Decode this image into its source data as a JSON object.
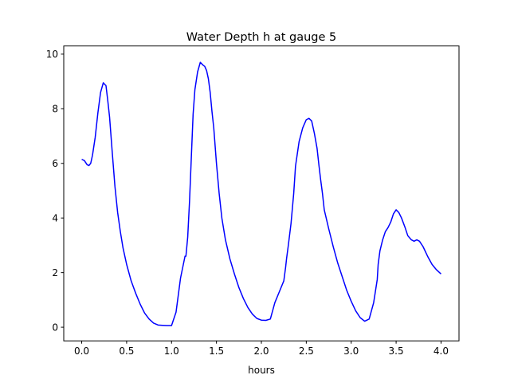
{
  "chart_data": {
    "type": "line",
    "title": "Water Depth h at gauge 5",
    "xlabel": "hours",
    "ylabel": "",
    "xlim": [
      -0.2,
      4.2
    ],
    "ylim": [
      -0.5,
      10.3
    ],
    "xticks": [
      0.0,
      0.5,
      1.0,
      1.5,
      2.0,
      2.5,
      3.0,
      3.5,
      4.0
    ],
    "xtick_labels": [
      "0.0",
      "0.5",
      "1.0",
      "1.5",
      "2.0",
      "2.5",
      "3.0",
      "3.5",
      "4.0"
    ],
    "yticks": [
      0,
      2,
      4,
      6,
      8,
      10
    ],
    "ytick_labels": [
      "0",
      "2",
      "4",
      "6",
      "8",
      "10"
    ],
    "grid": false,
    "series": [
      {
        "color": "#0000ff",
        "x": [
          0.0,
          0.03,
          0.06,
          0.08,
          0.1,
          0.12,
          0.15,
          0.18,
          0.21,
          0.24,
          0.27,
          0.29,
          0.31,
          0.34,
          0.37,
          0.4,
          0.43,
          0.46,
          0.5,
          0.55,
          0.6,
          0.65,
          0.7,
          0.75,
          0.8,
          0.85,
          0.9,
          0.95,
          1.0,
          1.05,
          1.1,
          1.15,
          1.16,
          1.18,
          1.2,
          1.22,
          1.24,
          1.26,
          1.29,
          1.32,
          1.35,
          1.37,
          1.39,
          1.41,
          1.43,
          1.45,
          1.47,
          1.5,
          1.53,
          1.56,
          1.6,
          1.65,
          1.7,
          1.75,
          1.8,
          1.85,
          1.9,
          1.95,
          2.0,
          2.05,
          2.1,
          2.15,
          2.2,
          2.25,
          2.27,
          2.28,
          2.3,
          2.33,
          2.36,
          2.38,
          2.42,
          2.46,
          2.5,
          2.53,
          2.56,
          2.59,
          2.62,
          2.64,
          2.66,
          2.68,
          2.7,
          2.75,
          2.8,
          2.85,
          2.9,
          2.95,
          3.0,
          3.05,
          3.1,
          3.15,
          3.2,
          3.25,
          3.29,
          3.3,
          3.32,
          3.35,
          3.38,
          3.41,
          3.44,
          3.47,
          3.5,
          3.53,
          3.56,
          3.6,
          3.63,
          3.67,
          3.7,
          3.73,
          3.76,
          3.8,
          3.85,
          3.9,
          3.95,
          4.0
        ],
        "values": [
          6.15,
          6.1,
          5.95,
          5.92,
          6.0,
          6.3,
          6.95,
          7.85,
          8.6,
          8.95,
          8.85,
          8.3,
          7.7,
          6.4,
          5.15,
          4.2,
          3.5,
          2.9,
          2.3,
          1.7,
          1.25,
          0.85,
          0.52,
          0.3,
          0.15,
          0.08,
          0.07,
          0.06,
          0.06,
          0.55,
          1.8,
          2.6,
          2.6,
          3.3,
          4.6,
          6.2,
          7.8,
          8.7,
          9.35,
          9.7,
          9.6,
          9.55,
          9.4,
          9.1,
          8.6,
          7.9,
          7.3,
          6.0,
          4.9,
          4.0,
          3.2,
          2.5,
          1.95,
          1.45,
          1.05,
          0.72,
          0.48,
          0.32,
          0.26,
          0.25,
          0.3,
          0.9,
          1.3,
          1.7,
          2.2,
          2.5,
          3.0,
          3.8,
          4.9,
          5.9,
          6.8,
          7.3,
          7.6,
          7.65,
          7.55,
          7.1,
          6.55,
          5.95,
          5.4,
          4.9,
          4.3,
          3.6,
          2.95,
          2.35,
          1.85,
          1.35,
          0.95,
          0.6,
          0.35,
          0.22,
          0.3,
          0.9,
          1.75,
          2.3,
          2.8,
          3.2,
          3.5,
          3.65,
          3.85,
          4.15,
          4.3,
          4.2,
          4.0,
          3.65,
          3.35,
          3.2,
          3.15,
          3.2,
          3.15,
          2.95,
          2.6,
          2.3,
          2.1,
          1.95
        ]
      }
    ]
  }
}
